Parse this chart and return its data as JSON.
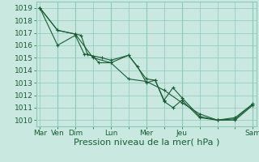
{
  "background_color": "#c8e8e0",
  "plot_bg_color": "#c8e8e0",
  "grid_color": "#8fc8b8",
  "line_color": "#1a5c35",
  "marker_color": "#1a5c35",
  "xlabel": "Pression niveau de la mer( hPa )",
  "ylim": [
    1009.5,
    1019.5
  ],
  "yticks": [
    1010,
    1011,
    1012,
    1013,
    1014,
    1015,
    1016,
    1017,
    1018,
    1019
  ],
  "xlim": [
    -0.2,
    12.2
  ],
  "xtick_labels": [
    "Mar",
    "Ven",
    "Dim",
    "",
    "Lun",
    "",
    "Mer",
    "",
    "Jeu",
    "",
    "",
    "",
    "Sam"
  ],
  "xtick_positions": [
    0,
    1,
    2,
    3,
    4,
    5,
    6,
    7,
    8,
    9,
    10,
    11,
    12
  ],
  "line1_x": [
    0,
    1,
    2,
    2.33,
    2.67,
    3,
    3.33,
    4,
    5,
    5.5,
    6,
    6.5,
    7,
    7.5,
    8,
    9,
    10,
    11,
    12
  ],
  "line1_y": [
    1019.0,
    1017.2,
    1016.9,
    1016.8,
    1015.3,
    1015.1,
    1014.6,
    1014.6,
    1015.2,
    1014.3,
    1013.0,
    1013.2,
    1011.6,
    1012.6,
    1011.8,
    1010.3,
    1010.0,
    1010.1,
    1011.3
  ],
  "line2_x": [
    0,
    1,
    2,
    2.5,
    3.5,
    4,
    5,
    6,
    6.5,
    7,
    7.5,
    8,
    9,
    10,
    11,
    12
  ],
  "line2_y": [
    1019.0,
    1016.0,
    1016.8,
    1015.3,
    1015.0,
    1014.8,
    1015.2,
    1013.3,
    1013.2,
    1011.5,
    1011.0,
    1011.6,
    1010.2,
    1010.0,
    1010.2,
    1011.3
  ],
  "line3_x": [
    0,
    1,
    2,
    3,
    4,
    5,
    6,
    7,
    8,
    9,
    10,
    11,
    12
  ],
  "line3_y": [
    1019.0,
    1017.2,
    1016.9,
    1015.0,
    1014.6,
    1013.3,
    1013.1,
    1012.4,
    1011.4,
    1010.5,
    1010.0,
    1010.0,
    1011.2
  ],
  "vline_positions": [
    1,
    2,
    4,
    6,
    8,
    12
  ],
  "xlabel_fontsize": 8,
  "ytick_fontsize": 6.5,
  "xtick_fontsize": 6.5
}
